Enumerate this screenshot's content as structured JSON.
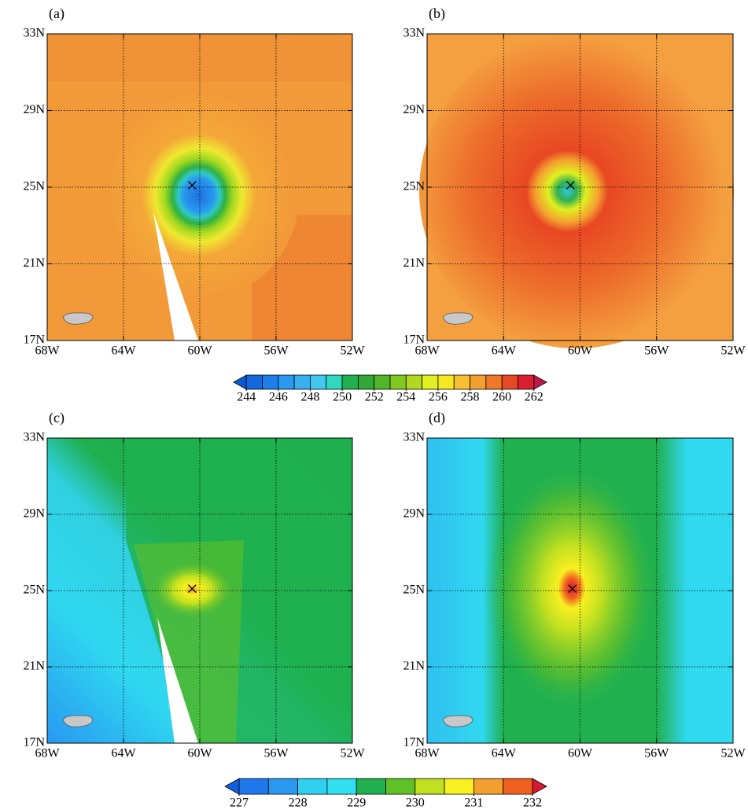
{
  "panels": [
    {
      "label": "(a)",
      "xlim": [
        -68,
        -52
      ],
      "ylim": [
        17,
        33
      ],
      "xticks": [
        {
          "value": -68,
          "label": "68W"
        },
        {
          "value": -64,
          "label": "64W"
        },
        {
          "value": -60,
          "label": "60W"
        },
        {
          "value": -56,
          "label": "56W"
        },
        {
          "value": -52,
          "label": "52W"
        }
      ],
      "yticks": [
        {
          "value": 17,
          "label": "17N"
        },
        {
          "value": 21,
          "label": "21N"
        },
        {
          "value": 25,
          "label": "25N"
        },
        {
          "value": 29,
          "label": "29N"
        },
        {
          "value": 33,
          "label": "33N"
        }
      ],
      "center": {
        "lon": -60.4,
        "lat": 25.1
      }
    },
    {
      "label": "(b)",
      "xlim": [
        -68,
        -52
      ],
      "ylim": [
        17,
        33
      ],
      "xticks": [
        {
          "value": -68,
          "label": "68W"
        },
        {
          "value": -64,
          "label": "64W"
        },
        {
          "value": -60,
          "label": "60W"
        },
        {
          "value": -56,
          "label": "56W"
        },
        {
          "value": -52,
          "label": "52W"
        }
      ],
      "yticks": [
        {
          "value": 17,
          "label": "17N"
        },
        {
          "value": 21,
          "label": "21N"
        },
        {
          "value": 25,
          "label": "25N"
        },
        {
          "value": 29,
          "label": "29N"
        },
        {
          "value": 33,
          "label": "33N"
        }
      ],
      "center": {
        "lon": -60.5,
        "lat": 25.1
      }
    },
    {
      "label": "(c)",
      "xlim": [
        -68,
        -52
      ],
      "ylim": [
        17,
        33
      ],
      "xticks": [
        {
          "value": -68,
          "label": "68W"
        },
        {
          "value": -64,
          "label": "64W"
        },
        {
          "value": -60,
          "label": "60W"
        },
        {
          "value": -56,
          "label": "56W"
        },
        {
          "value": -52,
          "label": "52W"
        }
      ],
      "yticks": [
        {
          "value": 17,
          "label": "17N"
        },
        {
          "value": 21,
          "label": "21N"
        },
        {
          "value": 25,
          "label": "25N"
        },
        {
          "value": 29,
          "label": "29N"
        },
        {
          "value": 33,
          "label": "33N"
        }
      ],
      "center": {
        "lon": -60.4,
        "lat": 25.1
      }
    },
    {
      "label": "(d)",
      "xlim": [
        -68,
        -52
      ],
      "ylim": [
        17,
        33
      ],
      "xticks": [
        {
          "value": -68,
          "label": "68W"
        },
        {
          "value": -64,
          "label": "64W"
        },
        {
          "value": -60,
          "label": "60W"
        },
        {
          "value": -56,
          "label": "56W"
        },
        {
          "value": -52,
          "label": "52W"
        }
      ],
      "yticks": [
        {
          "value": 17,
          "label": "17N"
        },
        {
          "value": 21,
          "label": "21N"
        },
        {
          "value": 25,
          "label": "25N"
        },
        {
          "value": 29,
          "label": "29N"
        },
        {
          "value": 33,
          "label": "33N"
        }
      ],
      "center": {
        "lon": -60.4,
        "lat": 25.1
      }
    }
  ],
  "colorbars": [
    {
      "lim": [
        244,
        262
      ],
      "ticks": [
        244,
        246,
        248,
        250,
        252,
        254,
        256,
        258,
        260,
        262
      ],
      "colors": [
        "#0a58d0",
        "#1468e0",
        "#1c80ec",
        "#2898f0",
        "#38b0f0",
        "#40c8f0",
        "#30d8c0",
        "#20b050",
        "#30a838",
        "#50b828",
        "#80c820",
        "#b0d820",
        "#e0f020",
        "#f8e820",
        "#f8c030",
        "#f4a030",
        "#f07828",
        "#e84824",
        "#d82030",
        "#c01848"
      ]
    },
    {
      "lim": [
        227,
        232
      ],
      "ticks": [
        227,
        228,
        229,
        230,
        231,
        232
      ],
      "colors": [
        "#1060e0",
        "#1e78ec",
        "#2898f0",
        "#30d0f0",
        "#30e0f0",
        "#20b050",
        "#60c028",
        "#c0e020",
        "#f8f020",
        "#f4a030",
        "#f06020",
        "#d81830"
      ]
    }
  ]
}
